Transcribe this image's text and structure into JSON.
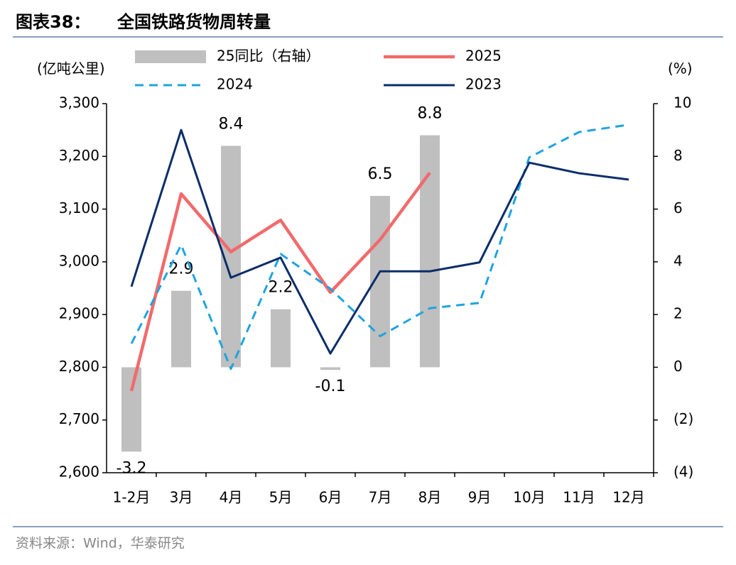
{
  "chart_data": {
    "type": "bar-line",
    "figure_label": "图表38：",
    "title": "全国铁路货物周转量",
    "source": "资料来源：Wind，华泰研究",
    "y_label": "(亿吨公里)",
    "y2_label": "(%)",
    "categories": [
      "1-2月",
      "3月",
      "4月",
      "5月",
      "6月",
      "7月",
      "8月",
      "9月",
      "10月",
      "11月",
      "12月"
    ],
    "series": [
      {
        "name": "25同比（右轴）",
        "kind": "bar",
        "axis": "y2",
        "color": "#bfbfbf",
        "values": [
          -3.2,
          2.9,
          8.4,
          2.2,
          -0.1,
          6.5,
          8.8,
          null,
          null,
          null,
          null
        ]
      },
      {
        "name": "2025",
        "kind": "line",
        "color": "#f26a6b",
        "dash": false,
        "values": [
          2755,
          3129,
          3019,
          3079,
          2942,
          3042,
          3169,
          null,
          null,
          null,
          null
        ]
      },
      {
        "name": "2024",
        "kind": "line",
        "color": "#1fa3e0",
        "dash": true,
        "values": [
          2845,
          3032,
          2797,
          3015,
          2949,
          2859,
          2912,
          2922,
          3198,
          3246,
          3260
        ]
      },
      {
        "name": "2023",
        "kind": "line",
        "color": "#0b2d69",
        "dash": false,
        "values": [
          2953,
          3250,
          2970,
          3008,
          2826,
          2982,
          2982,
          2999,
          3188,
          3168,
          3156
        ]
      }
    ],
    "ylim": [
      2600,
      3300
    ],
    "yticks": [
      {
        "value": 2600,
        "label": "2,600"
      },
      {
        "value": 2700,
        "label": "2,700"
      },
      {
        "value": 2800,
        "label": "2,800"
      },
      {
        "value": 2900,
        "label": "2,900"
      },
      {
        "value": 3000,
        "label": "3,000"
      },
      {
        "value": 3100,
        "label": "3,100"
      },
      {
        "value": 3200,
        "label": "3,200"
      },
      {
        "value": 3300,
        "label": "3,300"
      }
    ],
    "y2lim": [
      -4,
      10
    ],
    "y2ticks": [
      {
        "value": -4,
        "label": "(4)"
      },
      {
        "value": -2,
        "label": "(2)"
      },
      0,
      2,
      4,
      6,
      8,
      10
    ]
  }
}
